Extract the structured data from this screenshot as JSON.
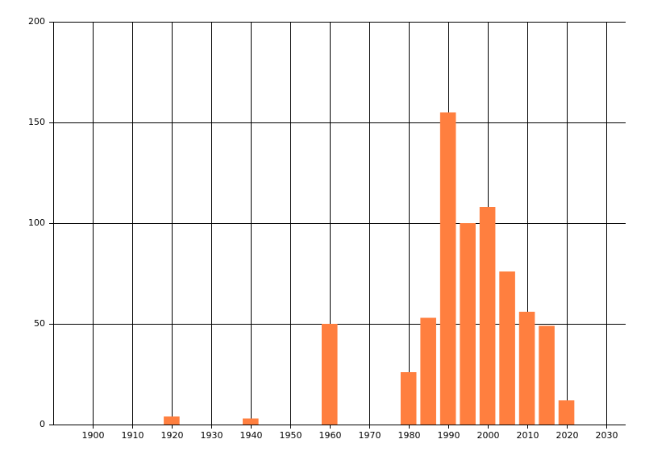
{
  "chart_data": {
    "type": "bar",
    "x": [
      1920,
      1940,
      1960,
      1980,
      1985,
      1990,
      1995,
      2000,
      2005,
      2010,
      2015,
      2020
    ],
    "values": [
      4,
      3,
      50,
      26,
      53,
      155,
      100,
      108,
      76,
      56,
      49,
      12
    ],
    "color": "#ff7f3f",
    "xlim": [
      1890,
      2035
    ],
    "xticks": [
      1900,
      1910,
      1920,
      1930,
      1940,
      1950,
      1960,
      1970,
      1980,
      1990,
      2000,
      2010,
      2020,
      2030
    ],
    "ylim": [
      0,
      200
    ],
    "yticks": [
      0,
      50,
      100,
      150,
      200
    ],
    "grid": true
  }
}
